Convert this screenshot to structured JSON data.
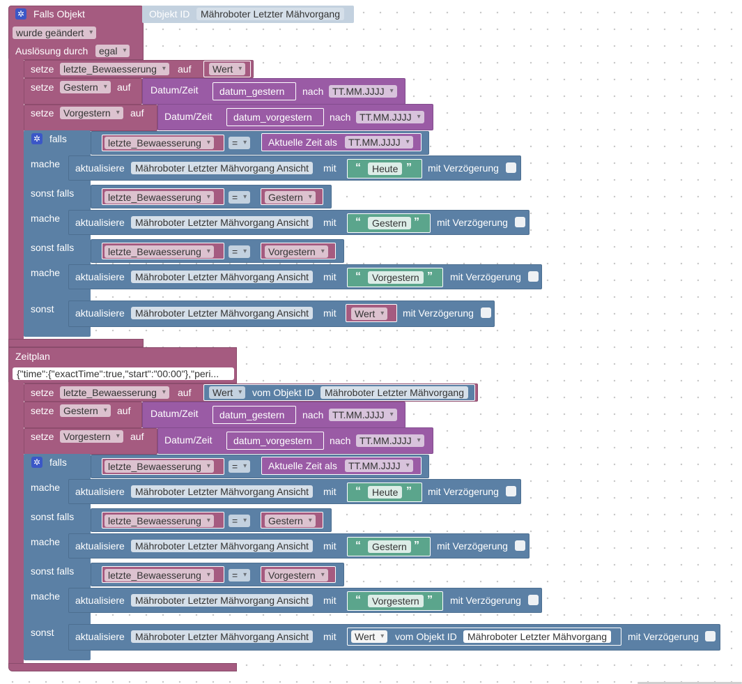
{
  "trigger": {
    "title": "Falls Objekt",
    "objekt_id_label": "Objekt ID",
    "objekt_id_value": "Mähroboter Letzter Mähvorgang",
    "changed_option": "wurde geändert",
    "trigger_by_label": "Auslösung durch",
    "trigger_by_option": "egal"
  },
  "schedule": {
    "title": "Zeitplan",
    "cron_value": "{\"time\":{\"exactTime\":true,\"start\":\"00:00\"},\"peri..."
  },
  "labels": {
    "setze": "setze",
    "auf": "auf",
    "wert": "Wert",
    "datum_zeit": "Datum/Zeit",
    "nach": "nach",
    "format": "TT.MM.JJJJ",
    "falls": "falls",
    "mache": "mache",
    "sonst_falls": "sonst falls",
    "sonst": "sonst",
    "equals": "=",
    "aktuelle_zeit": "Aktuelle Zeit als",
    "aktualisiere": "aktualisiere",
    "mit": "mit",
    "mit_verzoegerung": "mit Verzögerung",
    "vom_objekt_id": "vom Objekt ID",
    "quote_open": "“",
    "quote_close": "”"
  },
  "variables": {
    "letzte": "letzte_Bewaesserung",
    "gestern": "Gestern",
    "vorgestern": "Vorgestern"
  },
  "datum_fields": {
    "gestern": "datum_gestern",
    "vorgestern": "datum_vorgestern"
  },
  "target_object": "Mähroboter Letzter Mähvorgang Ansicht",
  "source_object": "Mähroboter Letzter Mähvorgang",
  "texts": {
    "heute": "Heute",
    "gestern": "Gestern",
    "vorgestern": "Vorgestern"
  },
  "colors": {
    "event": "#a55b80",
    "logic": "#5b80a5",
    "datetime": "#9a5ba5",
    "text": "#5ba58c"
  }
}
